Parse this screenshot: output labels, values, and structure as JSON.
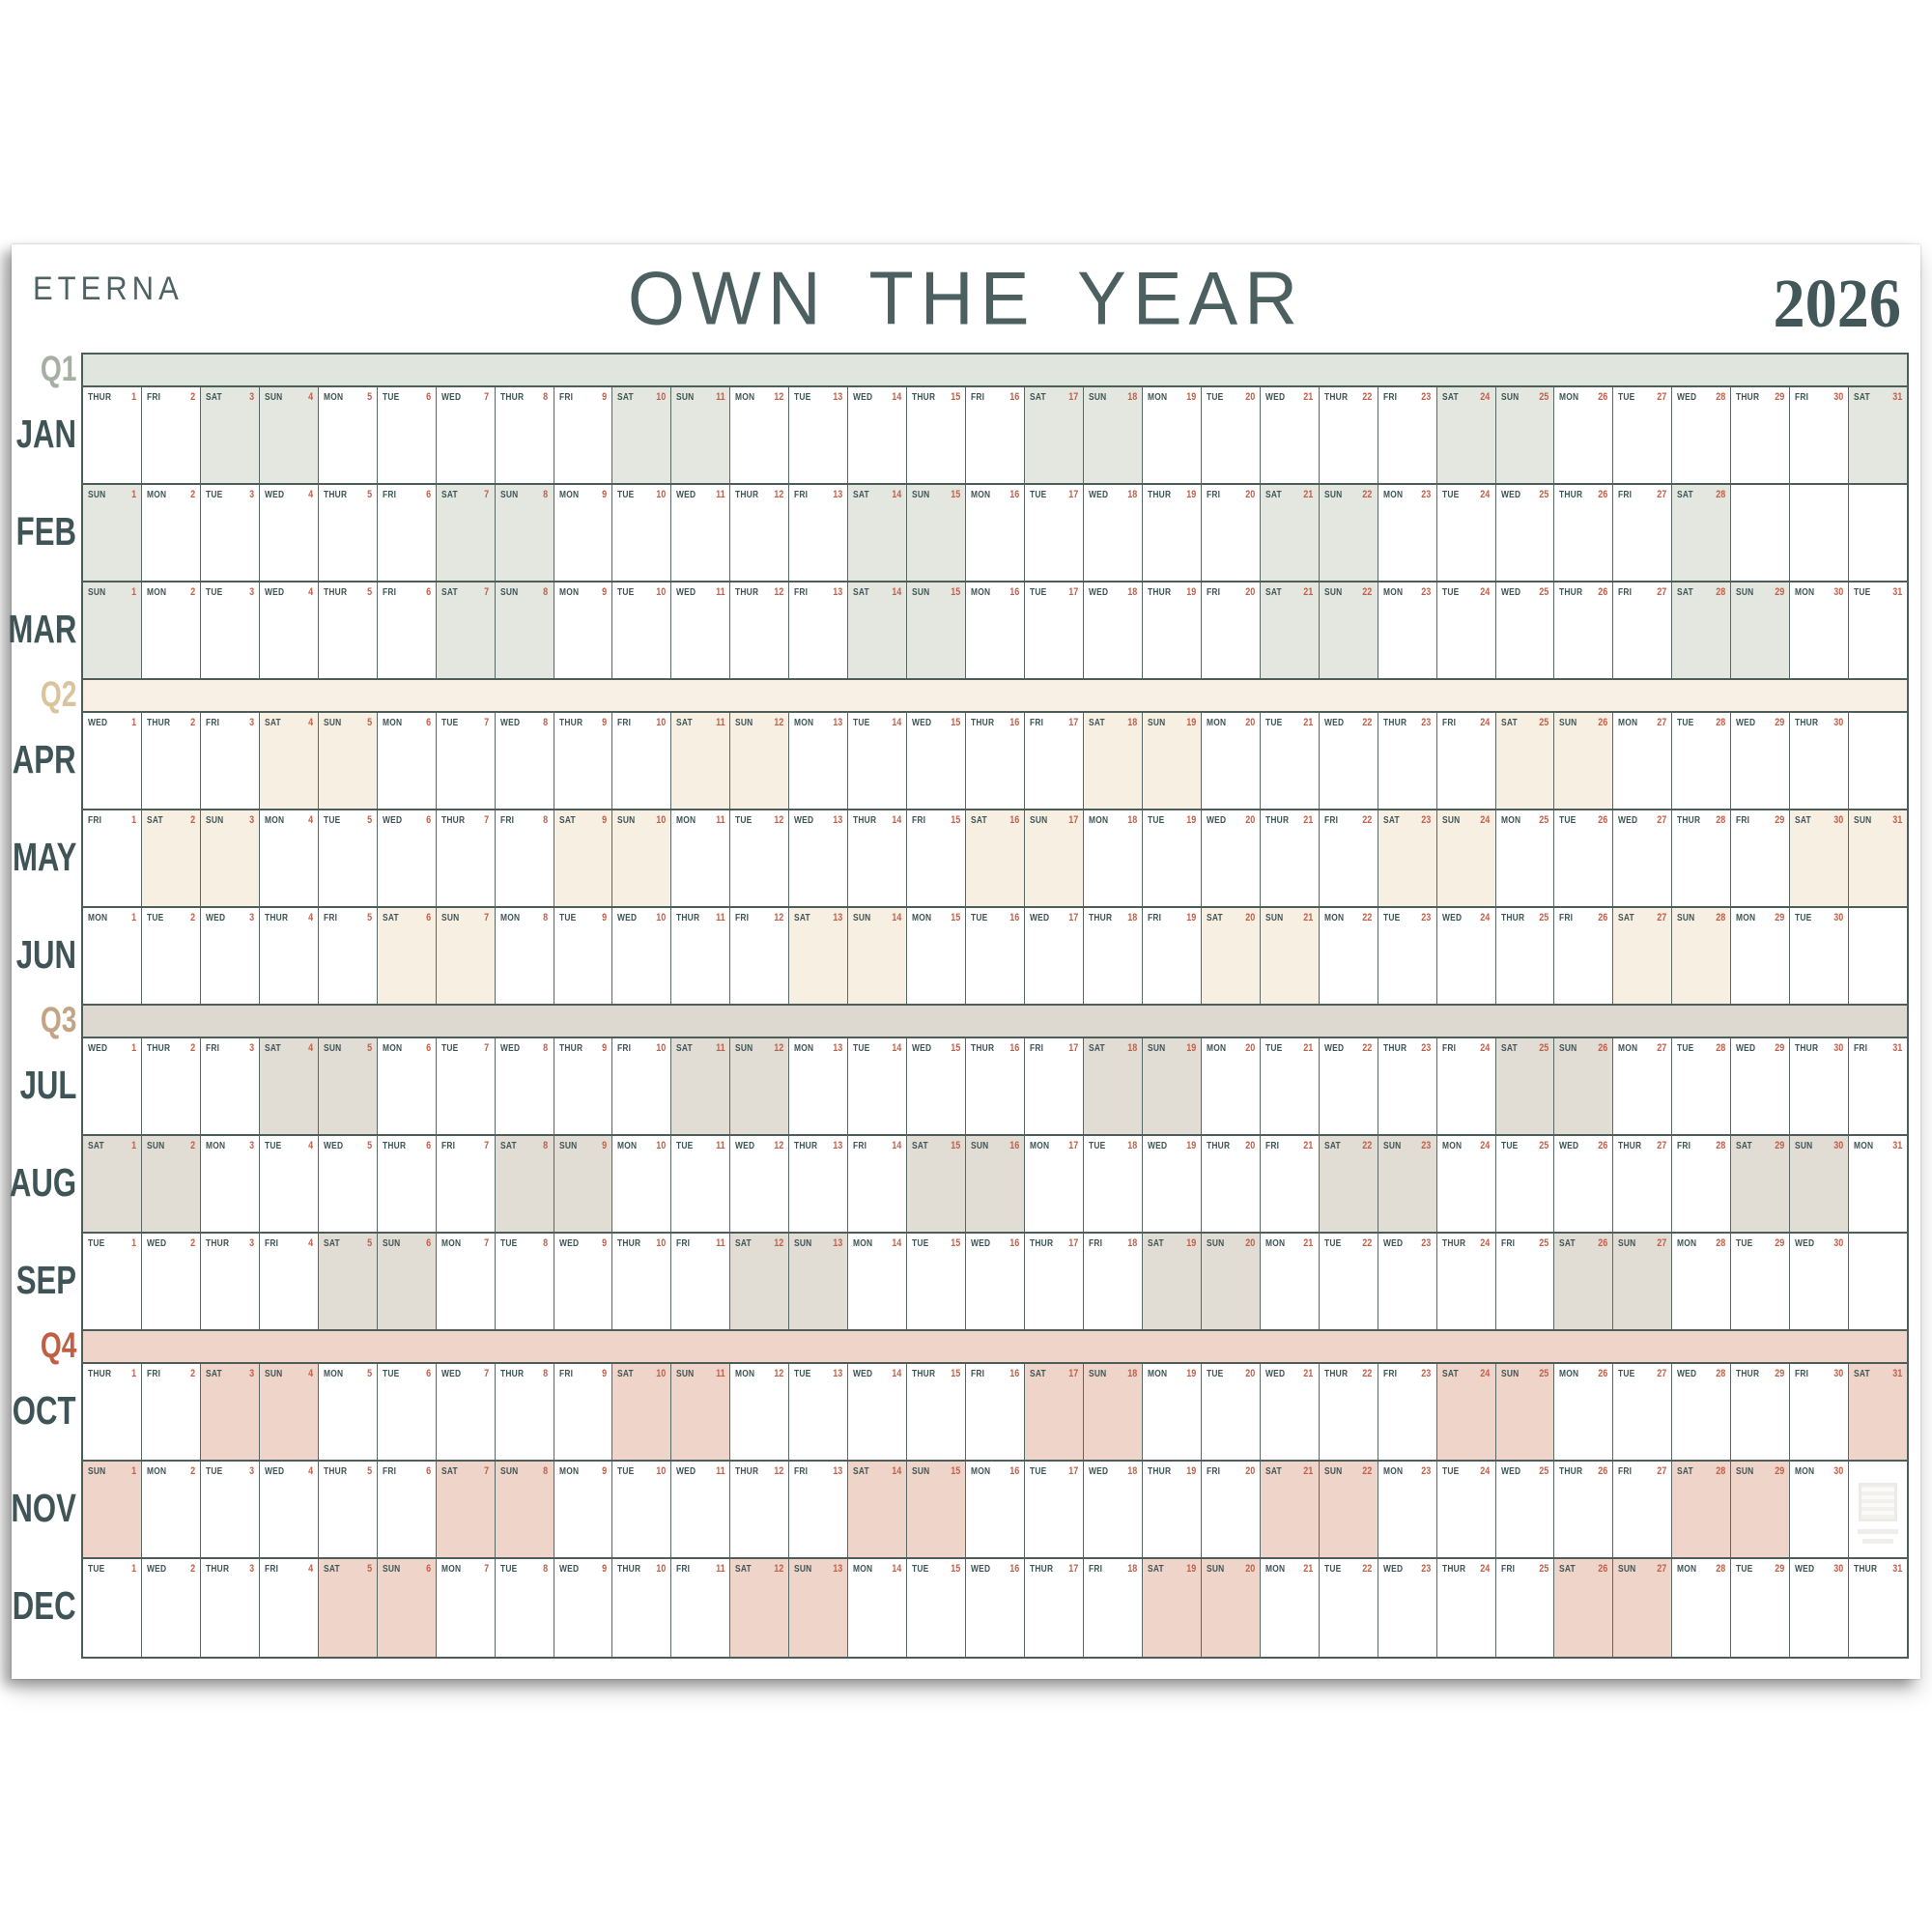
{
  "poster": {
    "brand": "ETERNA",
    "title": "OWN THE YEAR",
    "year": "2026",
    "dow_labels": [
      "SUN",
      "MON",
      "TUE",
      "WED",
      "THUR",
      "FRI",
      "SAT"
    ],
    "colors": {
      "ink": "#3F5456",
      "title": "#4D6061",
      "year": "#41575A",
      "brand": "#4E6263",
      "day_number": "#C2604A",
      "grid_line": "#4C5D5A"
    },
    "quarters": [
      {
        "label": "Q1",
        "label_color": "#A6AFA2",
        "strip_color": "#E0E5DE",
        "weekend_color": "#E3E7E0",
        "months": [
          {
            "name": "JAN",
            "first_dow": 4,
            "days": 31
          },
          {
            "name": "FEB",
            "first_dow": 0,
            "days": 28
          },
          {
            "name": "MAR",
            "first_dow": 0,
            "days": 31
          }
        ]
      },
      {
        "label": "Q2",
        "label_color": "#DBC39D",
        "strip_color": "#F9F0E5",
        "weekend_color": "#F8EFE3",
        "months": [
          {
            "name": "APR",
            "first_dow": 3,
            "days": 30
          },
          {
            "name": "MAY",
            "first_dow": 5,
            "days": 31
          },
          {
            "name": "JUN",
            "first_dow": 1,
            "days": 30
          }
        ]
      },
      {
        "label": "Q3",
        "label_color": "#C3A585",
        "strip_color": "#DDD8D0",
        "weekend_color": "#E1DCD4",
        "months": [
          {
            "name": "JUL",
            "first_dow": 3,
            "days": 31
          },
          {
            "name": "AUG",
            "first_dow": 6,
            "days": 31
          },
          {
            "name": "SEP",
            "first_dow": 2,
            "days": 30
          }
        ]
      },
      {
        "label": "Q4",
        "label_color": "#C05F43",
        "strip_color": "#EFD4CA",
        "weekend_color": "#EED4C9",
        "months": [
          {
            "name": "OCT",
            "first_dow": 4,
            "days": 31
          },
          {
            "name": "NOV",
            "first_dow": 0,
            "days": 30
          },
          {
            "name": "DEC",
            "first_dow": 2,
            "days": 31
          }
        ]
      }
    ],
    "grid": {
      "columns": 31
    },
    "watermark": {
      "kind": "qr-code",
      "location": "NOV-trailing-cell"
    }
  }
}
